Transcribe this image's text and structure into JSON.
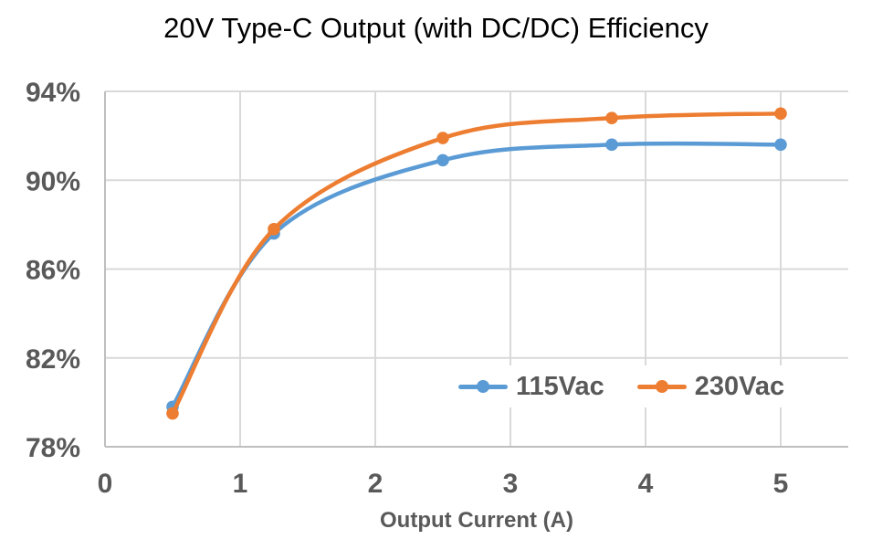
{
  "chart_data": {
    "type": "line",
    "title": "20V Type-C Output (with DC/DC) Efficiency",
    "xlabel": "Output Current (A)",
    "ylabel": "",
    "x": [
      0.5,
      1.25,
      2.5,
      3.75,
      5
    ],
    "series": [
      {
        "name": "115Vac",
        "color": "#5B9BD5",
        "values": [
          79.8,
          87.6,
          90.9,
          91.6,
          91.6
        ]
      },
      {
        "name": "230Vac",
        "color": "#ED7D31",
        "values": [
          79.5,
          87.8,
          91.9,
          92.8,
          93.0
        ]
      }
    ],
    "x_ticks": [
      0,
      1,
      2,
      3,
      4,
      5
    ],
    "y_ticks": [
      78,
      82,
      86,
      90,
      94
    ],
    "y_tick_suffix": "%",
    "xlim": [
      0,
      5.5
    ],
    "ylim": [
      78,
      94
    ],
    "grid": true,
    "smooth": true,
    "legend_position": "inside-lower-right"
  },
  "colors": {
    "background": "#FFFFFF",
    "grid": "#D9D9D9",
    "axis": "#BFBFBF",
    "tick_label": "#595959",
    "title": "#000000"
  }
}
